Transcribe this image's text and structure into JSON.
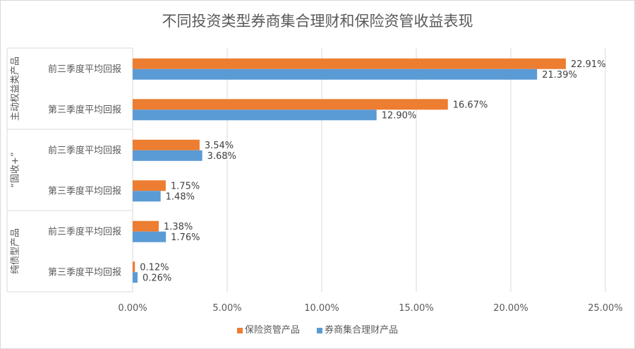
{
  "chart_data": {
    "type": "bar",
    "orientation": "horizontal",
    "title": "不同投资类型券商集合理财和保险资管收益表现",
    "groups": [
      {
        "name": "主动权益类产品",
        "categories": [
          "前三季度平均回报",
          "第三季度平均回报"
        ]
      },
      {
        "name": "“固收+”",
        "categories": [
          "前三季度平均回报",
          "第三季度平均回报"
        ]
      },
      {
        "name": "纯债型产品",
        "categories": [
          "前三季度平均回报",
          "第三季度平均回报"
        ]
      }
    ],
    "series": [
      {
        "name": "保险资管产品",
        "color": "#ED7D31",
        "values": [
          22.91,
          16.67,
          3.54,
          1.75,
          1.38,
          0.12
        ],
        "labels": [
          "22.91%",
          "16.67%",
          "3.54%",
          "1.75%",
          "1.38%",
          "0.12%"
        ]
      },
      {
        "name": "券商集合理财产品",
        "color": "#5B9BD5",
        "values": [
          21.39,
          12.9,
          3.68,
          1.48,
          1.76,
          0.26
        ],
        "labels": [
          "21.39%",
          "12.90%",
          "3.68%",
          "1.48%",
          "1.76%",
          "0.26%"
        ]
      }
    ],
    "xlim": [
      0,
      25
    ],
    "xticks": [
      "0.00%",
      "5.00%",
      "10.00%",
      "15.00%",
      "20.00%",
      "25.00%"
    ],
    "grid": true,
    "legend": "bottom"
  }
}
